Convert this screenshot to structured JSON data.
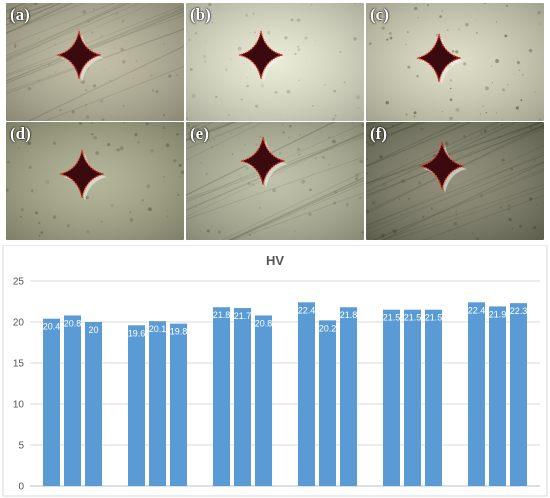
{
  "micrographs": [
    {
      "label": "(a)",
      "bg": "#b9b59a",
      "tone": "#8a8668",
      "streak": true
    },
    {
      "label": "(b)",
      "bg": "#e6e8cf",
      "tone": "#a9ab8e",
      "streak": false
    },
    {
      "label": "(c)",
      "bg": "#d9d8bd",
      "tone": "#6e6c55",
      "streak": false
    },
    {
      "label": "(d)",
      "bg": "#a7a988",
      "tone": "#6d6f52",
      "streak": false
    },
    {
      "label": "(e)",
      "bg": "#b4b79b",
      "tone": "#7d8064",
      "streak": true
    },
    {
      "label": "(f)",
      "bg": "#7d7d66",
      "tone": "#55553f",
      "streak": true
    }
  ],
  "colors": {
    "bar": "#5b9bd5",
    "indent": "#3a0a0e",
    "indent_outline": "#e23b2a",
    "grid": "#d9d9d9",
    "axis": "#bfbfbf"
  },
  "chart_data": {
    "type": "bar",
    "title": "HV",
    "xlabel": "",
    "ylabel": "",
    "ylim": [
      0,
      25
    ],
    "yticks": [
      0,
      5,
      10,
      15,
      20,
      25
    ],
    "groups": [
      {
        "values": [
          20.4,
          20.8,
          20
        ]
      },
      {
        "values": [
          19.6,
          20.1,
          19.8
        ]
      },
      {
        "values": [
          21.8,
          21.7,
          20.8
        ]
      },
      {
        "values": [
          22.4,
          20.2,
          21.8
        ]
      },
      {
        "values": [
          21.5,
          21.5,
          21.5
        ]
      },
      {
        "values": [
          22.4,
          21.9,
          22.3
        ]
      }
    ],
    "grid": true,
    "legend": "none"
  }
}
